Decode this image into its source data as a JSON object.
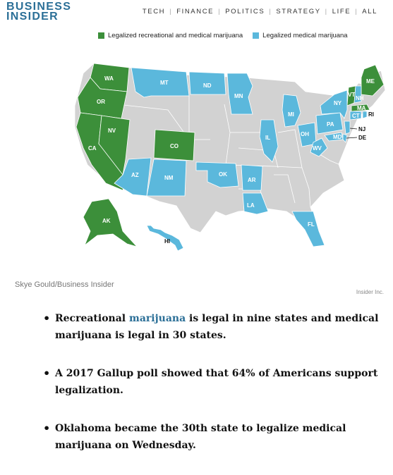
{
  "header": {
    "logo_line1": "BUSINESS",
    "logo_line2": "INSIDER",
    "nav": [
      "TECH",
      "FINANCE",
      "POLITICS",
      "STRATEGY",
      "LIFE",
      "ALL"
    ]
  },
  "map": {
    "legend": [
      {
        "label": "Legalized recreational and medical marijuana",
        "color": "#3c8f3a"
      },
      {
        "label": "Legalized medical marijuana",
        "color": "#5bb8dc"
      }
    ],
    "other_color": "#d2d2d2",
    "state_labels": {
      "WA": "WA",
      "OR": "OR",
      "CA": "CA",
      "NV": "NV",
      "CO": "CO",
      "AK": "AK",
      "MT": "MT",
      "ND": "ND",
      "MN": "MN",
      "AZ": "AZ",
      "NM": "NM",
      "OK": "OK",
      "AR": "AR",
      "LA": "LA",
      "IL": "IL",
      "MI": "MI",
      "OH": "OH",
      "PA": "PA",
      "WV": "WV",
      "MD": "MD",
      "NY": "NY",
      "VT": "VT",
      "NH": "NH",
      "ME": "ME",
      "MA": "MA",
      "CT": "CT",
      "RI": "RI",
      "NJ": "NJ",
      "DE": "DE",
      "FL": "FL",
      "HI": "HI"
    },
    "watermark": "Insider Inc."
  },
  "caption": "Skye Gould/Business Insider",
  "bullets": {
    "b1_pre": "Recreational ",
    "b1_link": "marijuana",
    "b1_post": " is legal in nine states and medical marijuana is legal in 30 states.",
    "b2": "A 2017 Gallup poll showed that 64% of Americans support legalization.",
    "b3": "Oklahoma became the 30th state to legalize medical marijuana on Wednesday."
  }
}
